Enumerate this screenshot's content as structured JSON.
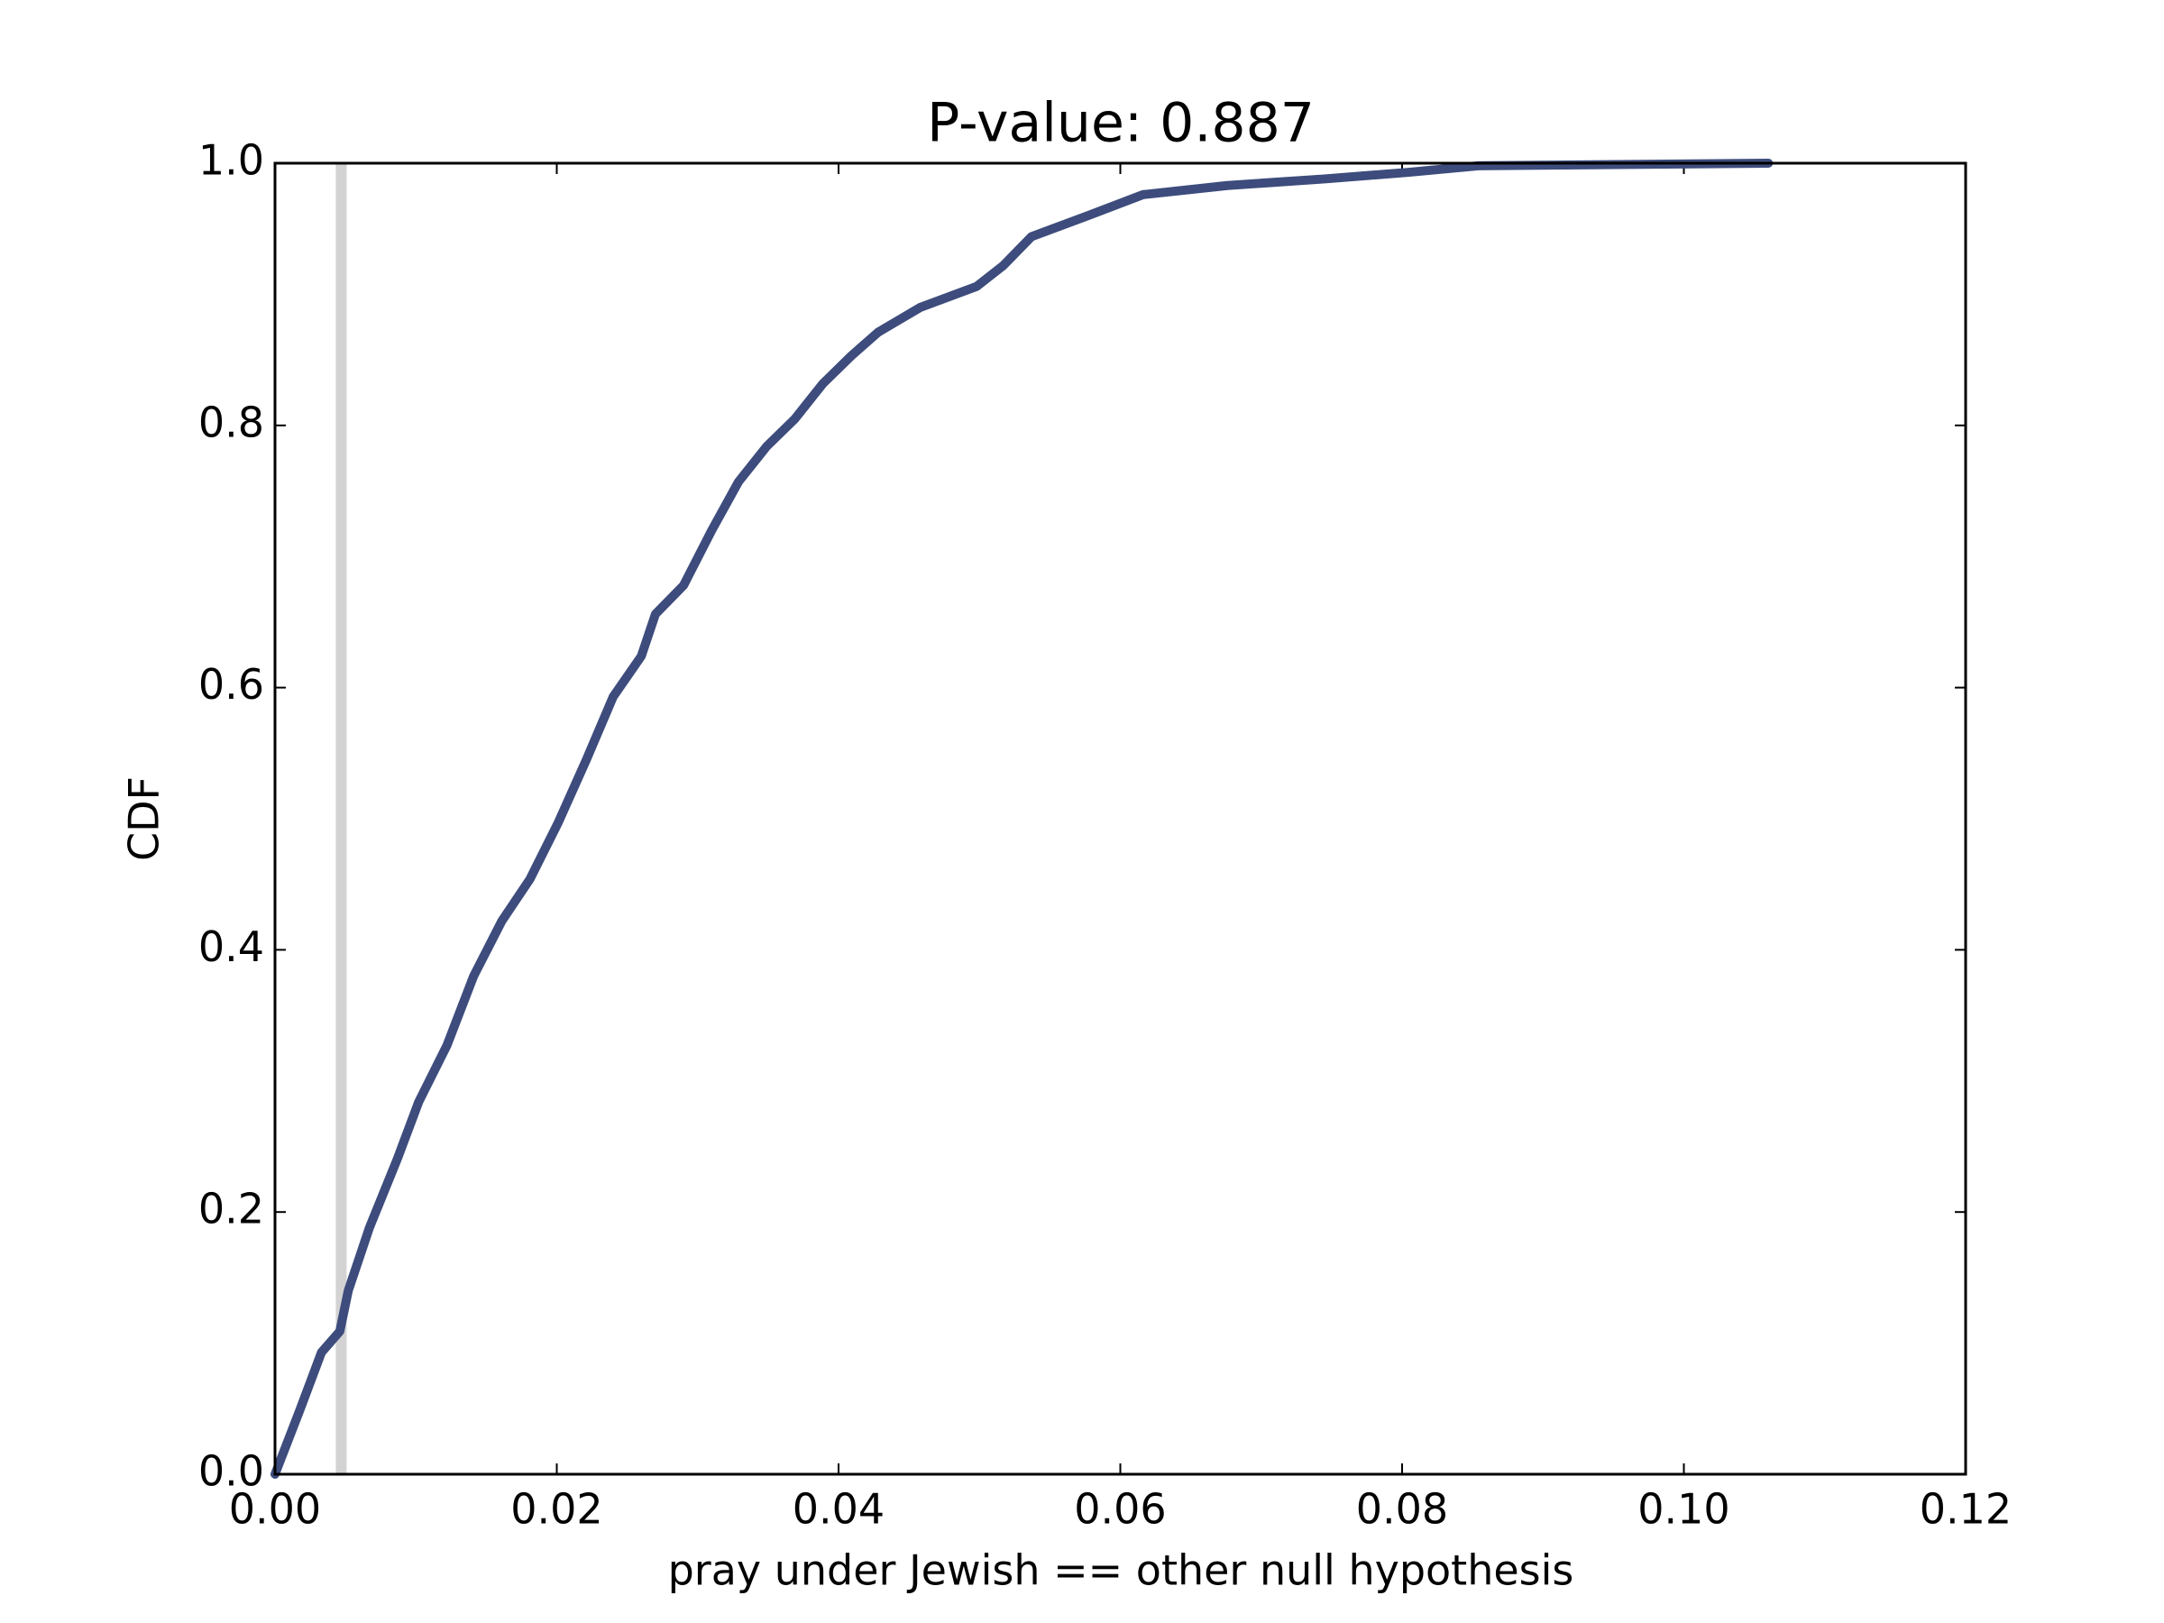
{
  "chart_data": {
    "type": "line",
    "title": "P-value: 0.887",
    "xlabel": "pray under Jewish == other null hypothesis",
    "ylabel": "CDF",
    "x": [
      0,
      0.0018,
      0.0033,
      0.0046,
      0.0052,
      0.0067,
      0.0087,
      0.0102,
      0.0122,
      0.0141,
      0.0161,
      0.0181,
      0.0201,
      0.0221,
      0.024,
      0.026,
      0.027,
      0.029,
      0.031,
      0.0329,
      0.0349,
      0.0369,
      0.0389,
      0.0409,
      0.0428,
      0.0458,
      0.0498,
      0.0517,
      0.0537,
      0.0577,
      0.0616,
      0.0676,
      0.0745,
      0.0804,
      0.0854,
      0.106
    ],
    "values": [
      0,
      0.05,
      0.093,
      0.109,
      0.14,
      0.188,
      0.241,
      0.284,
      0.327,
      0.38,
      0.422,
      0.454,
      0.497,
      0.545,
      0.593,
      0.624,
      0.656,
      0.678,
      0.72,
      0.757,
      0.784,
      0.805,
      0.832,
      0.853,
      0.871,
      0.89,
      0.906,
      0.922,
      0.944,
      0.96,
      0.976,
      0.983,
      0.988,
      0.993,
      0.998,
      1.0
    ],
    "color": "#3d4c7c",
    "vline": {
      "x": 0.0047,
      "color": "#d3d3d3"
    },
    "xlim": [
      0,
      0.12
    ],
    "ylim": [
      0,
      1
    ],
    "xticks": [
      {
        "value": 0,
        "label": "0.00"
      },
      {
        "value": 0.02,
        "label": "0.02"
      },
      {
        "value": 0.04,
        "label": "0.04"
      },
      {
        "value": 0.06,
        "label": "0.06"
      },
      {
        "value": 0.08,
        "label": "0.08"
      },
      {
        "value": 0.1,
        "label": "0.10"
      },
      {
        "value": 0.12,
        "label": "0.12"
      }
    ],
    "yticks": [
      {
        "value": 0,
        "label": "0.0"
      },
      {
        "value": 0.2,
        "label": "0.2"
      },
      {
        "value": 0.4,
        "label": "0.4"
      },
      {
        "value": 0.6,
        "label": "0.6"
      },
      {
        "value": 0.8,
        "label": "0.8"
      },
      {
        "value": 1,
        "label": "1.0"
      }
    ],
    "grid": false
  }
}
